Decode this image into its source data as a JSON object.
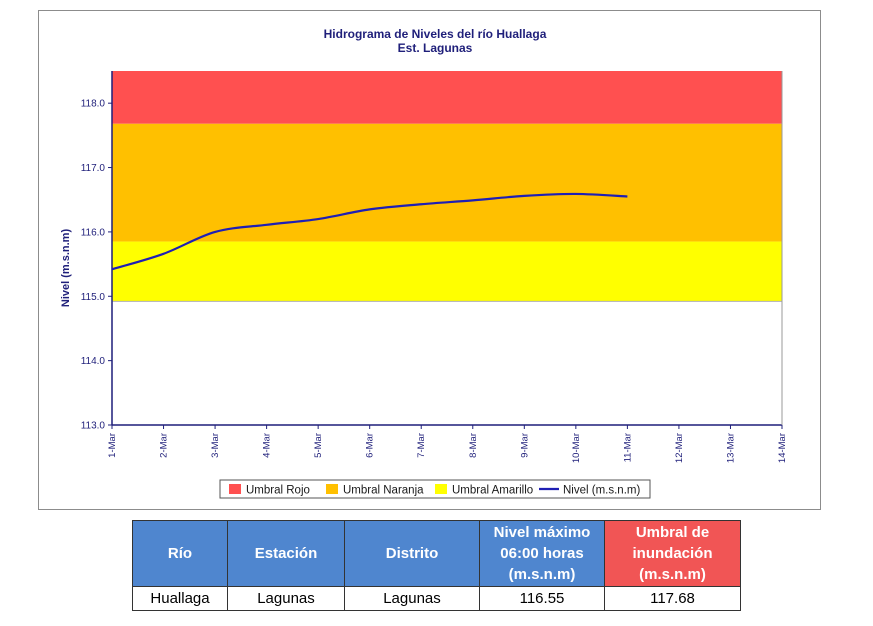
{
  "chart_data": {
    "type": "line",
    "title": "Hidrograma de Niveles del río Huallaga",
    "subtitle": "Est. Lagunas",
    "ylabel": "Nivel (m.s.n.m)",
    "xlabel": "",
    "ylim": [
      113.0,
      118.5
    ],
    "yticks": [
      "113.0",
      "114.0",
      "115.0",
      "116.0",
      "117.0",
      "118.0"
    ],
    "categories": [
      "1-Mar",
      "2-Mar",
      "3-Mar",
      "4-Mar",
      "5-Mar",
      "6-Mar",
      "7-Mar",
      "8-Mar",
      "9-Mar",
      "10-Mar",
      "11-Mar",
      "12-Mar",
      "13-Mar",
      "14-Mar"
    ],
    "bands": [
      {
        "name": "Umbral Rojo",
        "from": 117.68,
        "to": 118.5,
        "color": "#ff5050"
      },
      {
        "name": "Umbral Naranja",
        "from": 115.85,
        "to": 117.68,
        "color": "#ffc000"
      },
      {
        "name": "Umbral Amarillo",
        "from": 114.92,
        "to": 115.85,
        "color": "#ffff00"
      }
    ],
    "series": [
      {
        "name": "Nivel (m.s.n.m)",
        "color": "#1f1fb4",
        "x": [
          "1-Mar",
          "2-Mar",
          "3-Mar",
          "4-Mar",
          "5-Mar",
          "6-Mar",
          "7-Mar",
          "8-Mar",
          "9-Mar",
          "10-Mar",
          "11-Mar"
        ],
        "values": [
          115.42,
          115.66,
          116.0,
          116.11,
          116.2,
          116.35,
          116.43,
          116.49,
          116.56,
          116.59,
          116.55
        ]
      }
    ],
    "legend": [
      "Umbral Rojo",
      "Umbral Naranja",
      "Umbral Amarillo",
      "Nivel (m.s.n.m)"
    ],
    "legend_position": "bottom",
    "grid": false
  },
  "table": {
    "headers": [
      "Río",
      "Estación",
      "Distrito",
      "Nivel máximo 06:00 horas (m.s.n.m)",
      "Umbral de inundación (m.s.n.m)"
    ],
    "row": [
      "Huallaga",
      "Lagunas",
      "Lagunas",
      "116.55",
      "117.68"
    ]
  }
}
